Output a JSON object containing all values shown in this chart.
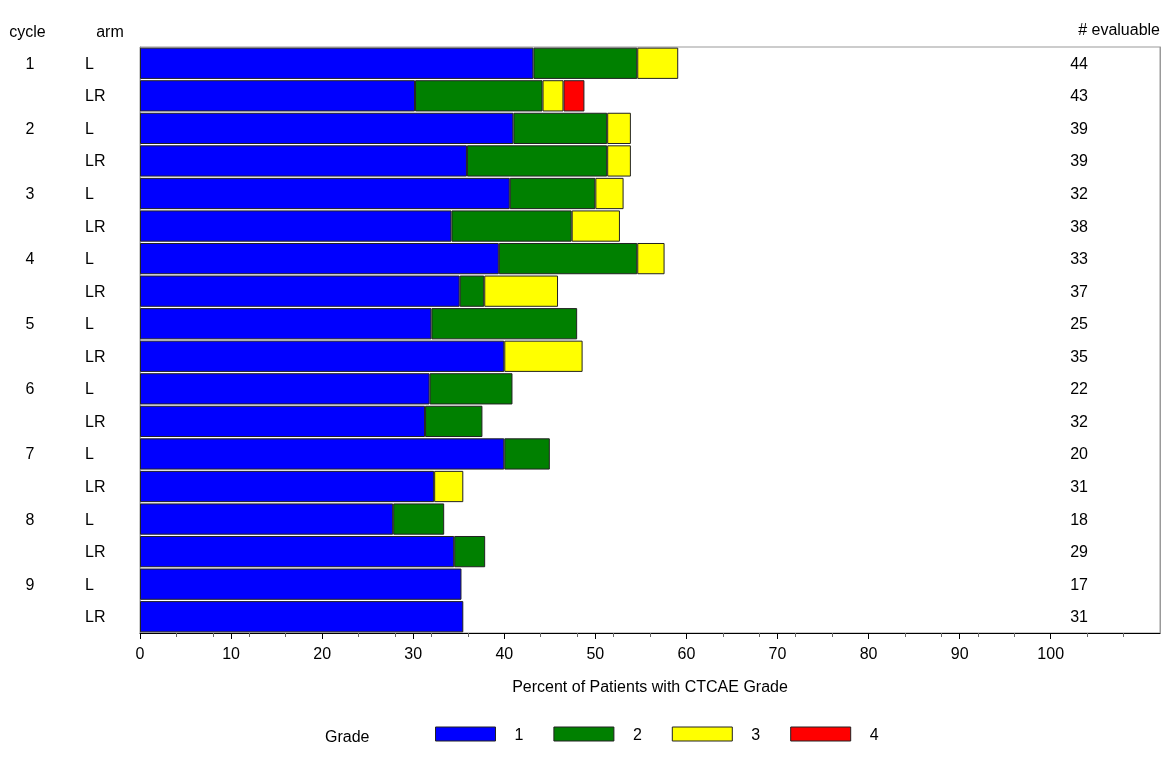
{
  "chart_data": {
    "type": "bar",
    "orientation": "horizontal",
    "stacked": true,
    "categories": [
      "L",
      "LR",
      "L",
      "LR",
      "L",
      "LR",
      "L",
      "LR",
      "L",
      "LR",
      "L",
      "LR",
      "L",
      "LR",
      "L",
      "LR",
      "L",
      "LR"
    ],
    "y2_categories": [
      "44",
      "43",
      "39",
      "39",
      "32",
      "38",
      "33",
      "37",
      "25",
      "35",
      "22",
      "32",
      "20",
      "31",
      "18",
      "29",
      "17",
      "31"
    ],
    "y2label": "# evaluable",
    "ylabel": "arm",
    "annotations": [
      "cycle",
      "1",
      "2",
      "3",
      "4",
      "5",
      "6",
      "7",
      "8",
      "9"
    ],
    "xlabel": "Percent of Patients with CTCAE Grade",
    "legend_title": "Grade",
    "series": [
      {
        "name": "1",
        "color": "#0000ff",
        "values": [
          43.2,
          30.2,
          41.0,
          35.9,
          40.6,
          34.2,
          39.4,
          35.1,
          32.0,
          40.0,
          31.8,
          31.3,
          40.0,
          32.3,
          27.8,
          34.5,
          35.3,
          35.5
        ]
      },
      {
        "name": "2",
        "color": "#008000",
        "values": [
          11.4,
          14.0,
          10.3,
          15.4,
          9.4,
          13.2,
          15.2,
          2.7,
          16.0,
          null,
          9.1,
          6.3,
          5.0,
          null,
          5.6,
          3.4,
          null,
          null
        ]
      },
      {
        "name": "3",
        "color": "#ffff00",
        "values": [
          4.5,
          2.3,
          2.6,
          2.6,
          3.1,
          5.3,
          3.0,
          8.1,
          null,
          8.6,
          null,
          null,
          null,
          3.2,
          null,
          null,
          null,
          null
        ]
      },
      {
        "name": "4",
        "color": "#ff0000",
        "values": [
          null,
          2.3,
          null,
          null,
          null,
          null,
          null,
          null,
          null,
          null,
          null,
          null,
          null,
          null,
          null,
          null,
          null,
          null
        ]
      }
    ],
    "xlim": [
      0,
      112
    ],
    "xticks": [
      0,
      10,
      20,
      30,
      40,
      50,
      60,
      70,
      80,
      90,
      100
    ],
    "grid": false,
    "legend": "bottom"
  }
}
